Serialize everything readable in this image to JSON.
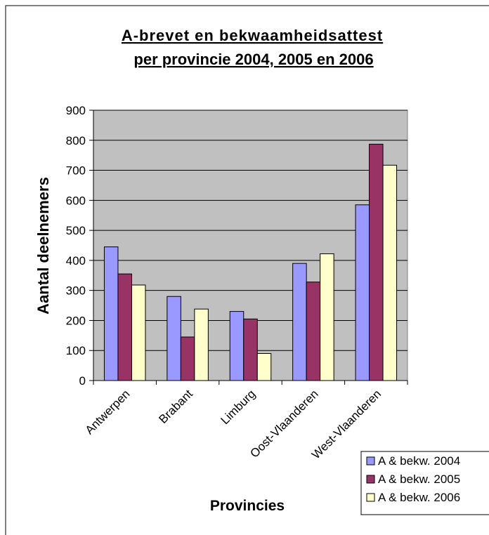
{
  "chart_data": {
    "type": "bar",
    "title_lines": [
      "A-brevet en bekwaamheidsattest",
      "per provincie 2004, 2005 en 2006"
    ],
    "xlabel": "Provincies",
    "ylabel": "Aantal deelnemers",
    "categories": [
      "Antwerpen",
      "Brabant",
      "Limburg",
      "Oost-Vlaanderen",
      "West-Vlaanderen"
    ],
    "series": [
      {
        "name": "A & bekw. 2004",
        "color": "#9999ff",
        "values": [
          445,
          280,
          230,
          390,
          585
        ]
      },
      {
        "name": "A & bekw. 2005",
        "color": "#993366",
        "values": [
          355,
          145,
          205,
          328,
          787
        ]
      },
      {
        "name": "A & bekw. 2006",
        "color": "#ffffcc",
        "values": [
          318,
          238,
          90,
          422,
          717
        ]
      }
    ],
    "ylim": [
      0,
      900
    ],
    "yticks": [
      0,
      100,
      200,
      300,
      400,
      500,
      600,
      700,
      800,
      900
    ],
    "grid": true,
    "plot_background": "#c0c0c0",
    "legend_position": "bottom-right"
  }
}
